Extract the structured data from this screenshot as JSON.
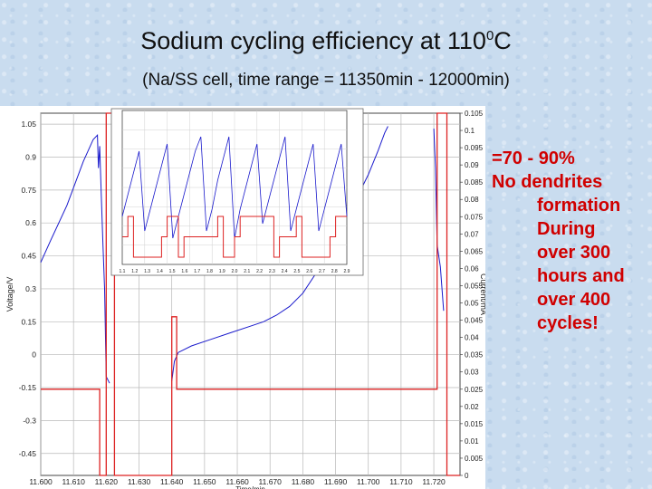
{
  "title": {
    "main": "Sodium cycling efficiency at 110",
    "sup": "0",
    "unit": "C"
  },
  "subtitle": "(Na/SS cell, time range = 11350min - 12000min)",
  "notes": {
    "efficiency": "=70 - 90%",
    "line1": "No dendrites",
    "line2": "formation",
    "line3": "During",
    "line4": "over 300",
    "line5": "hours and",
    "line6": "over 400",
    "line7": "cycles!"
  },
  "colors": {
    "voltage": "#1a1acc",
    "current": "#dd2222",
    "grid": "#b8b8b8",
    "text_red": "#d00000"
  },
  "chart_data": [
    {
      "type": "line",
      "xlabel": "Time/min",
      "ylabel": "Voltage/V",
      "y2label": "Current/mA",
      "xlim": [
        11600,
        11728
      ],
      "ylim": [
        -0.55,
        1.1
      ],
      "y2lim": [
        0,
        0.105
      ],
      "grid": true,
      "x_ticks": [
        "11.600",
        "11.610",
        "11.620",
        "11.630",
        "11.640",
        "11.650",
        "11.660",
        "11.670",
        "11.680",
        "11.690",
        "11.700",
        "11.710",
        "11.720"
      ],
      "y_ticks": [
        "1.05",
        "0.9",
        "0.75",
        "0.6",
        "0.45",
        "0.3",
        "0.15",
        "0",
        "-0.15",
        "-0.3",
        "-0.45"
      ],
      "y2_ticks": [
        "0.105",
        "0.1",
        "0.095",
        "0.09",
        "0.085",
        "0.08",
        "0.075",
        "0.07",
        "0.065",
        "0.06",
        "0.055",
        "0.05",
        "0.045",
        "0.04",
        "0.035",
        "0.03",
        "0.025",
        "0.02",
        "0.015",
        "0.01",
        "0.005",
        "0"
      ],
      "series": [
        {
          "axis": "y",
          "x": [
            11600,
            11603,
            11608,
            11613,
            11616,
            11617.3,
            11617.6,
            11618.0,
            11618.5,
            11619.0,
            11619.5,
            11620,
            11621
          ],
          "y": [
            0.42,
            0.52,
            0.68,
            0.88,
            0.98,
            1.0,
            0.85,
            0.95,
            0.72,
            0.5,
            0.3,
            -0.1,
            -0.13
          ]
        },
        {
          "axis": "y",
          "x": [
            11640,
            11640.8,
            11642,
            11646,
            11652,
            11658,
            11664,
            11668,
            11672,
            11676,
            11680,
            11684,
            11688,
            11692,
            11696,
            11700,
            11703,
            11705,
            11706
          ],
          "y": [
            -0.12,
            -0.03,
            0.01,
            0.04,
            0.07,
            0.1,
            0.13,
            0.15,
            0.18,
            0.22,
            0.28,
            0.37,
            0.47,
            0.58,
            0.7,
            0.82,
            0.93,
            1.01,
            1.04
          ]
        },
        {
          "axis": "y",
          "x": [
            11720,
            11720.5,
            11721,
            11721.5,
            11722,
            11722.5,
            11723
          ],
          "y": [
            1.03,
            0.85,
            0.5,
            0.45,
            0.4,
            0.3,
            0.2
          ]
        },
        {
          "axis": "y2",
          "x": [
            11600,
            11618,
            11618,
            11620,
            11620,
            11622.5,
            11622.5,
            11640,
            11640,
            11641.5,
            11641.5,
            11721,
            11721,
            11724,
            11724,
            11728
          ],
          "y": [
            0.025,
            0.025,
            0.0,
            0.0,
            0.105,
            0.105,
            0.0,
            0.0,
            0.046,
            0.046,
            0.025,
            0.025,
            0.105,
            0.105,
            0.0,
            0.0
          ]
        }
      ]
    },
    {
      "type": "line",
      "x_ticks": [
        "1.1",
        "1.2",
        "1.3",
        "1.4",
        "1.5",
        "1.6",
        "1.7",
        "1.8",
        "1.9",
        "2.0",
        "2.1",
        "2.2",
        "2.3",
        "2.4",
        "2.5",
        "2.6",
        "2.7",
        "2.8",
        "2.9"
      ],
      "series": [
        {
          "axis": "y",
          "x": [
            0,
            1,
            2,
            3,
            4,
            5,
            6,
            7,
            8,
            9,
            10,
            11,
            12,
            13,
            14,
            15,
            16,
            17,
            18,
            19,
            20,
            21,
            22,
            23,
            24,
            25,
            26,
            27,
            28,
            29,
            30,
            31,
            32,
            33,
            34,
            35,
            36,
            37,
            38,
            39,
            40
          ],
          "y": [
            0.3,
            0.45,
            0.6,
            0.75,
            0.2,
            0.35,
            0.5,
            0.65,
            0.8,
            0.15,
            0.3,
            0.45,
            0.6,
            0.75,
            0.85,
            0.2,
            0.35,
            0.55,
            0.7,
            0.85,
            0.15,
            0.35,
            0.5,
            0.65,
            0.8,
            0.25,
            0.4,
            0.55,
            0.7,
            0.85,
            0.2,
            0.35,
            0.5,
            0.65,
            0.8,
            0.2,
            0.35,
            0.5,
            0.65,
            0.8,
            0.3
          ]
        },
        {
          "axis": "y2",
          "x": [
            0,
            1,
            1,
            2,
            2,
            7,
            7,
            8,
            8,
            10,
            10,
            11,
            11,
            17,
            17,
            18,
            18,
            20,
            20,
            21,
            21,
            27,
            27,
            28,
            28,
            31,
            31,
            32,
            32,
            37,
            37,
            38,
            38,
            40
          ],
          "y": [
            0.5,
            0.5,
            1,
            1,
            0,
            0,
            0.5,
            0.5,
            1,
            1,
            0,
            0,
            0.5,
            0.5,
            1,
            1,
            0,
            0,
            0.5,
            0.5,
            1,
            1,
            0,
            0,
            0.5,
            0.5,
            1,
            1,
            0,
            0,
            0.5,
            0.5,
            1,
            1
          ]
        }
      ]
    }
  ]
}
